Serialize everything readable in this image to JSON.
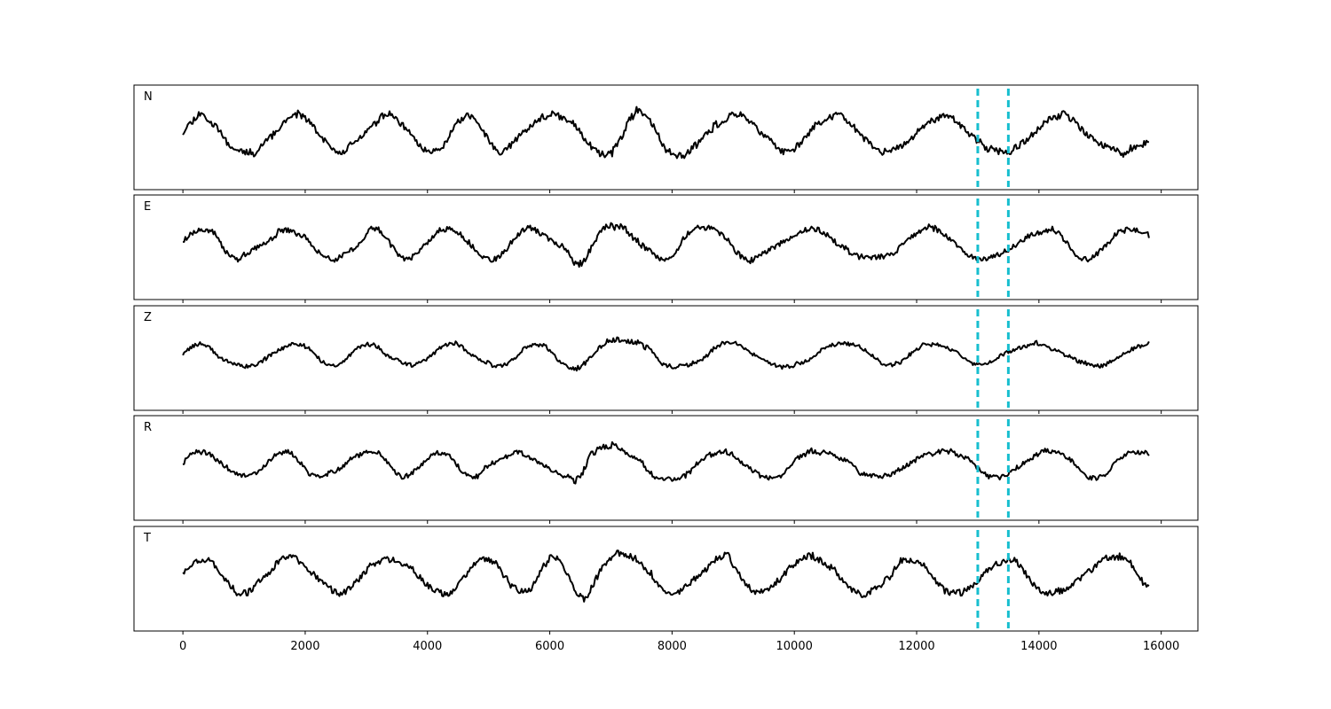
{
  "chart_data": {
    "type": "line",
    "title": "",
    "xlabel": "",
    "ylabel": "",
    "xlim": [
      -800,
      16600
    ],
    "x_ticks": [
      0,
      2000,
      4000,
      6000,
      8000,
      10000,
      12000,
      14000,
      16000
    ],
    "x_tick_labels": [
      "0",
      "2000",
      "4000",
      "6000",
      "8000",
      "10000",
      "12000",
      "14000",
      "16000"
    ],
    "samples": 15800,
    "shared_x": true,
    "y_ticks_visible": false,
    "grid": false,
    "legend": "none",
    "markers": {
      "x": [
        13000,
        13500
      ],
      "style": "dashed",
      "color": "#17becf"
    },
    "line_color": "#000000",
    "series": [
      {
        "name": "N",
        "seed": 11,
        "base_amplitude": 0.42,
        "event_start": 6300,
        "event_gain": 1.35
      },
      {
        "name": "E",
        "seed": 23,
        "base_amplitude": 0.35,
        "event_start": 6300,
        "event_gain": 1.45
      },
      {
        "name": "Z",
        "seed": 37,
        "base_amplitude": 0.25,
        "event_start": 6300,
        "event_gain": 1.7
      },
      {
        "name": "R",
        "seed": 41,
        "base_amplitude": 0.3,
        "event_start": 6300,
        "event_gain": 1.55
      },
      {
        "name": "T",
        "seed": 53,
        "base_amplitude": 0.42,
        "event_start": 6300,
        "event_gain": 1.3
      }
    ]
  }
}
